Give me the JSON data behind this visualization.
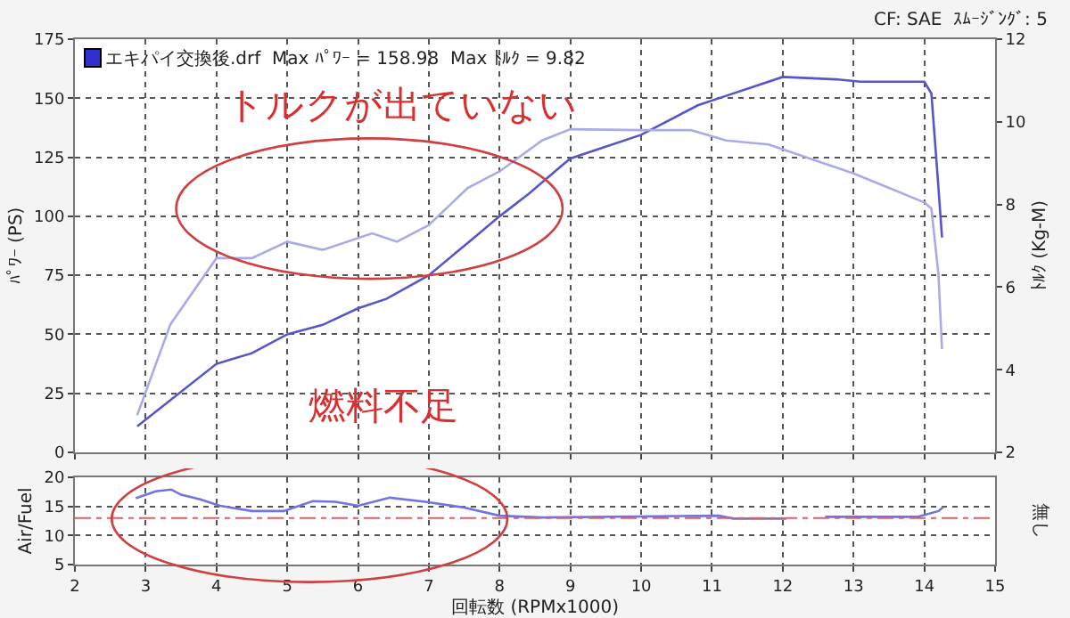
{
  "chart_data": [
    {
      "type": "line",
      "xlim": [
        2,
        15
      ],
      "xticks": [
        2,
        3,
        4,
        5,
        6,
        7,
        8,
        9,
        10,
        11,
        12,
        13,
        14,
        15
      ],
      "tick_labels": "y",
      "ylim": [
        0,
        175
      ],
      "yticks": [
        0,
        25,
        50,
        75,
        100,
        125,
        150,
        175
      ],
      "y2lim": [
        2,
        12
      ],
      "y2ticks": [
        2,
        4,
        6,
        8,
        10,
        12
      ],
      "ylabel": "ﾊﾟﾜｰ (PS)",
      "y2label": "ﾄﾙｸ (Kg-M)",
      "grid": true,
      "marker": "none",
      "line_style": "solid",
      "annotations": [
        "エキパイ交換後.drf  Max ﾊﾟﾜｰ = 158.98  Max ﾄﾙｸ = 9.82",
        "CF: SAE  ｽﾑｰｼﾞﾝｸﾞ: 5",
        "トルクが出ていない",
        "燃料不足"
      ],
      "series": [
        {
          "color": "#5656c8",
          "x": [
            2.88,
            4,
            4.5,
            5,
            5.5,
            6,
            6.4,
            7,
            7.6,
            8,
            8.41,
            8.9,
            9,
            10,
            10.8,
            11.2,
            12,
            12.75,
            13.1,
            14,
            14.1,
            14.2,
            14.25
          ],
          "values": [
            11,
            37.5,
            42,
            50,
            54,
            61,
            65,
            75,
            90,
            100,
            109.5,
            122,
            124.5,
            134.5,
            147,
            151,
            159,
            158,
            157,
            157,
            152,
            112,
            91
          ]
        },
        {
          "color": "#aaaae8",
          "axis": "y2",
          "x": [
            2.88,
            3.35,
            4,
            4.5,
            5,
            5.5,
            6.2,
            6.55,
            7,
            7.55,
            8,
            8.6,
            9,
            10,
            10.7,
            11.2,
            11.8,
            12.4,
            13,
            13.5,
            14,
            14.1,
            14.2,
            14.25
          ],
          "values": [
            2.9,
            5.1,
            6.7,
            6.7,
            7.1,
            6.9,
            7.3,
            7.1,
            7.5,
            8.4,
            8.8,
            9.55,
            9.82,
            9.8,
            9.8,
            9.55,
            9.45,
            9.1,
            8.75,
            8.4,
            8.05,
            7.9,
            6.3,
            4.5
          ]
        }
      ]
    },
    {
      "type": "line",
      "xlim": [
        2,
        15
      ],
      "xticks": [
        2,
        3,
        4,
        5,
        6,
        7,
        8,
        9,
        10,
        11,
        12,
        13,
        14,
        15
      ],
      "ylim": [
        5,
        20
      ],
      "yticks": [
        5,
        10,
        15,
        20
      ],
      "xlabel": "回転数 (RPMx1000)",
      "ylabel": "Air/Fuel",
      "grid": true,
      "marker": "none",
      "line_style": "solid",
      "annotations": [
        "無し"
      ],
      "ref_lines": [
        {
          "axis": "y",
          "value": 13,
          "color": "#e06060",
          "line_style": "dashdot"
        }
      ],
      "series": [
        {
          "color": "#7272e0",
          "x": [
            2.86,
            3.14,
            3.36,
            3.5,
            3.77,
            4.05,
            4.5,
            4.95,
            5.36,
            5.68,
            6,
            6.45,
            6.95,
            7.5,
            8,
            8.6,
            11.1,
            11.3,
            12.05,
            12.3,
            12.6,
            13.05,
            13.9,
            14.2,
            14.27
          ],
          "values": [
            16.4,
            17.6,
            17.9,
            17,
            16.2,
            15.1,
            14.2,
            14.2,
            15.9,
            15.8,
            15.1,
            16.5,
            15.8,
            14.8,
            13.4,
            13.1,
            13.4,
            12.9,
            12.9,
            null,
            13.2,
            13.2,
            13.2,
            14.2,
            14.9
          ]
        }
      ]
    }
  ]
}
